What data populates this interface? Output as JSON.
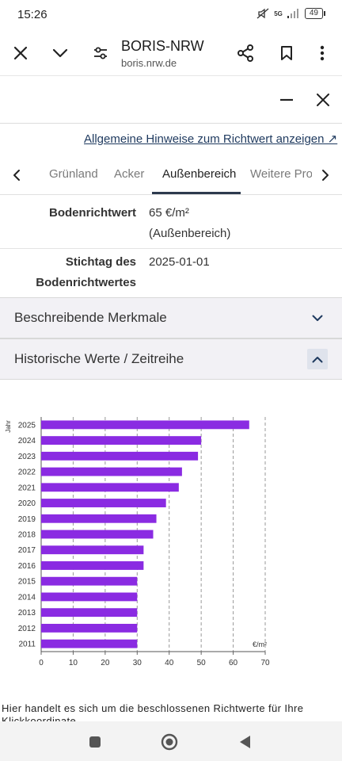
{
  "status_bar": {
    "time": "15:26",
    "network": "5G",
    "battery": "49"
  },
  "browser": {
    "title": "BORIS-NRW",
    "url": "boris.nrw.de"
  },
  "hint_link": "Allgemeine Hinweise zum Richtwert anzeigen ↗",
  "tabs": [
    "Grünland",
    "Acker",
    "Außenbereich",
    "Weitere Pro"
  ],
  "active_tab": "Außenbereich",
  "attributes": [
    {
      "key_lines": [
        "Bodenrichtwert"
      ],
      "value_lines": [
        "65 €/m²",
        "(Außenbereich)"
      ]
    },
    {
      "key_lines": [
        "Stichtag des",
        "Bodenrichtwertes"
      ],
      "value_lines": [
        "2025-01-01"
      ]
    }
  ],
  "accordions": [
    {
      "label": "Beschreibende Merkmale",
      "expanded": false
    },
    {
      "label": "Historische Werte / Zeitreihe",
      "expanded": true
    }
  ],
  "chart_data": {
    "type": "bar",
    "orientation": "horizontal",
    "categories": [
      "2025",
      "2024",
      "2023",
      "2022",
      "2021",
      "2020",
      "2019",
      "2018",
      "2017",
      "2016",
      "2015",
      "2014",
      "2013",
      "2012",
      "2011"
    ],
    "values": [
      65,
      50,
      49,
      44,
      43,
      39,
      36,
      35,
      32,
      32,
      30,
      30,
      30,
      30,
      30
    ],
    "xlabel": "€/m²",
    "ylabel": "Jahr",
    "xlim": [
      0,
      70
    ],
    "xticks": [
      0,
      10,
      20,
      30,
      40,
      50,
      60,
      70
    ],
    "grid": true,
    "bar_color": "#8a2be2"
  },
  "footnote": "Hier handelt es sich um die beschlossenen Richtwerte für Ihre Klickkoordinate."
}
